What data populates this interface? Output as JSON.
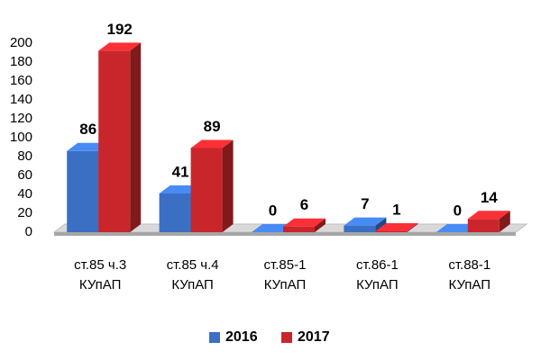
{
  "chart_data": {
    "type": "bar3d",
    "categories": [
      "ст.85 ч.3\nКУпАП",
      "ст.85 ч.4\nКУпАП",
      "ст.85-1\nКУпАП",
      "ст.86-1\nКУпАП",
      "ст.88-1\nКУпАП"
    ],
    "series": [
      {
        "name": "2016",
        "color": "#3a6fc4",
        "values": [
          86,
          41,
          0,
          7,
          0
        ]
      },
      {
        "name": "2017",
        "color": "#c8262b",
        "values": [
          192,
          89,
          6,
          1,
          14
        ]
      }
    ],
    "ylim": [
      0,
      200
    ],
    "yticks": [
      0,
      20,
      40,
      60,
      80,
      100,
      120,
      140,
      160,
      180,
      200
    ],
    "grid": false
  }
}
